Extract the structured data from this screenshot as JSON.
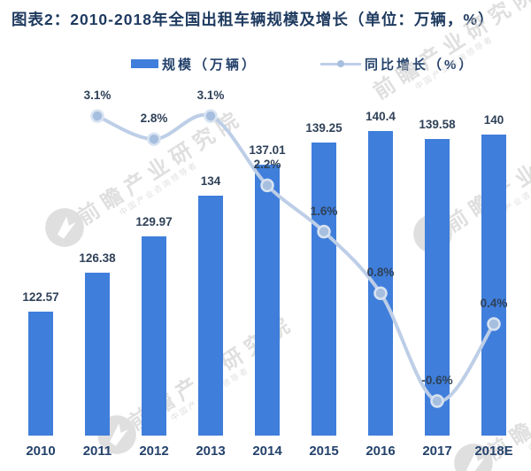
{
  "title": "图表2：2010-2018年全国出租车辆规模及增长（单位：万辆，%）",
  "legend": {
    "bar_label": "规模（万辆）",
    "line_label": "同比增长（%）"
  },
  "watermark": {
    "text": "前瞻产业研究院",
    "subtext": "中国产业咨询领导者"
  },
  "colors": {
    "bar": "#3F7EDB",
    "line": "#BDCEE7",
    "marker": "#A6BFDF",
    "marker_ring": "#D8E3F1",
    "title": "#1E3A5F",
    "data_label": "#2F4158",
    "axis_label": "#24426B",
    "watermark": "#C6C6C6"
  },
  "chart_data": {
    "type": "bar+line",
    "title": "图表2：2010-2018年全国出租车辆规模及增长（单位：万辆，%）",
    "categories": [
      "2010",
      "2011",
      "2012",
      "2013",
      "2014",
      "2015",
      "2016",
      "2017",
      "2018E"
    ],
    "series": [
      {
        "name": "规模（万辆）",
        "type": "bar",
        "values": [
          122.57,
          126.38,
          129.97,
          134,
          137.01,
          139.25,
          140.4,
          139.58,
          140
        ],
        "labels": [
          "122.57",
          "126.38",
          "129.97",
          "134",
          "137.01",
          "139.25",
          "140.4",
          "139.58",
          "140"
        ]
      },
      {
        "name": "同比增长（%）",
        "type": "line",
        "values": [
          null,
          3.1,
          2.8,
          3.1,
          2.2,
          1.6,
          0.8,
          -0.6,
          0.4
        ],
        "labels": [
          "",
          "3.1%",
          "2.8%",
          "3.1%",
          "2.2%",
          "1.6%",
          "0.8%",
          "-0.6%",
          "0.4%"
        ]
      }
    ],
    "legend_position": "top",
    "grid": false,
    "value_labels_shown": true,
    "x_axis_line": false,
    "y_axes_shown": false,
    "bar_axis_window_hint": [
      110,
      144
    ],
    "line_axis_percent_window_hint": [
      -1.1,
      3.5
    ]
  }
}
